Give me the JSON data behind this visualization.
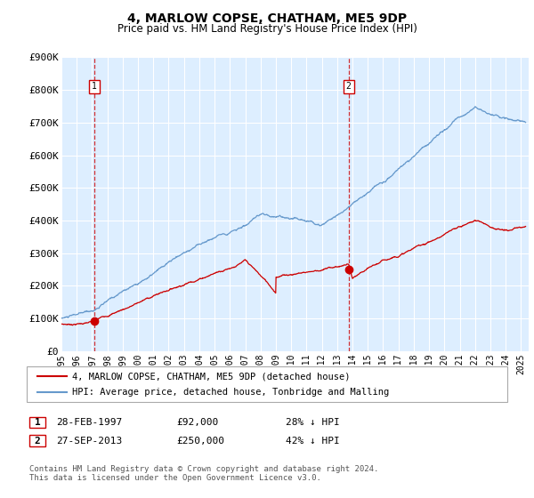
{
  "title": "4, MARLOW COPSE, CHATHAM, ME5 9DP",
  "subtitle": "Price paid vs. HM Land Registry's House Price Index (HPI)",
  "legend_entry1": "4, MARLOW COPSE, CHATHAM, ME5 9DP (detached house)",
  "legend_entry2": "HPI: Average price, detached house, Tonbridge and Malling",
  "annotation1_date": "28-FEB-1997",
  "annotation1_price": 92000,
  "annotation1_hpi": "28% ↓ HPI",
  "annotation1_year": 1997.15,
  "annotation2_date": "27-SEP-2013",
  "annotation2_price": 250000,
  "annotation2_hpi": "42% ↓ HPI",
  "annotation2_year": 2013.75,
  "red_color": "#cc0000",
  "blue_color": "#6699cc",
  "bg_color": "#ddeeff",
  "ylabel_ticks": [
    "£0",
    "£100K",
    "£200K",
    "£300K",
    "£400K",
    "£500K",
    "£600K",
    "£700K",
    "£800K",
    "£900K"
  ],
  "ytick_values": [
    0,
    100000,
    200000,
    300000,
    400000,
    500000,
    600000,
    700000,
    800000,
    900000
  ],
  "xmin": 1995.0,
  "xmax": 2025.5,
  "ymin": 0,
  "ymax": 900000,
  "footnote1": "Contains HM Land Registry data © Crown copyright and database right 2024.",
  "footnote2": "This data is licensed under the Open Government Licence v3.0."
}
